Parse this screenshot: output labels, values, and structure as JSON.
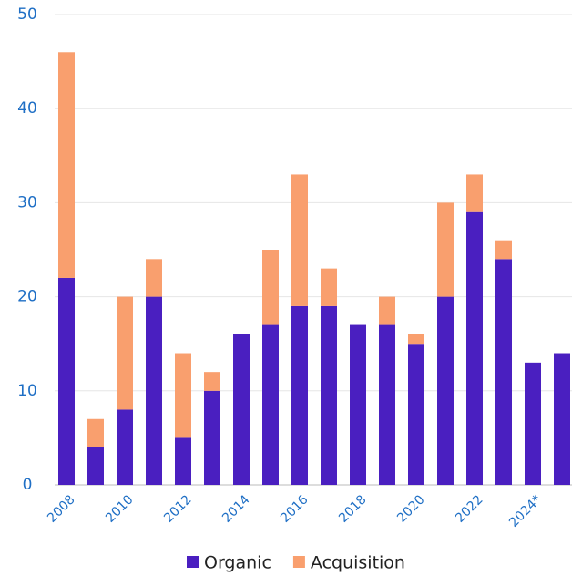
{
  "chart_data": {
    "type": "stacked_bar",
    "categories": [
      "2008",
      null,
      "2010",
      null,
      "2012",
      null,
      "2014",
      null,
      "2016",
      null,
      "2018",
      null,
      "2020",
      null,
      "2022",
      null,
      "2024*",
      null
    ],
    "series": [
      {
        "name": "Organic",
        "color": "#4a1fc0",
        "values": [
          22,
          4,
          8,
          20,
          5,
          10,
          16,
          17,
          19,
          19,
          17,
          17,
          15,
          20,
          29,
          24,
          13,
          14
        ]
      },
      {
        "name": "Acquisition",
        "color": "#f99f6e",
        "values": [
          24,
          3,
          12,
          4,
          9,
          2,
          0,
          8,
          14,
          4,
          0,
          3,
          1,
          10,
          4,
          2,
          0,
          0
        ]
      }
    ],
    "ylim": [
      0,
      50
    ],
    "yticks": [
      0,
      10,
      20,
      30,
      40,
      50
    ],
    "grid": true,
    "legend": "bottom"
  }
}
